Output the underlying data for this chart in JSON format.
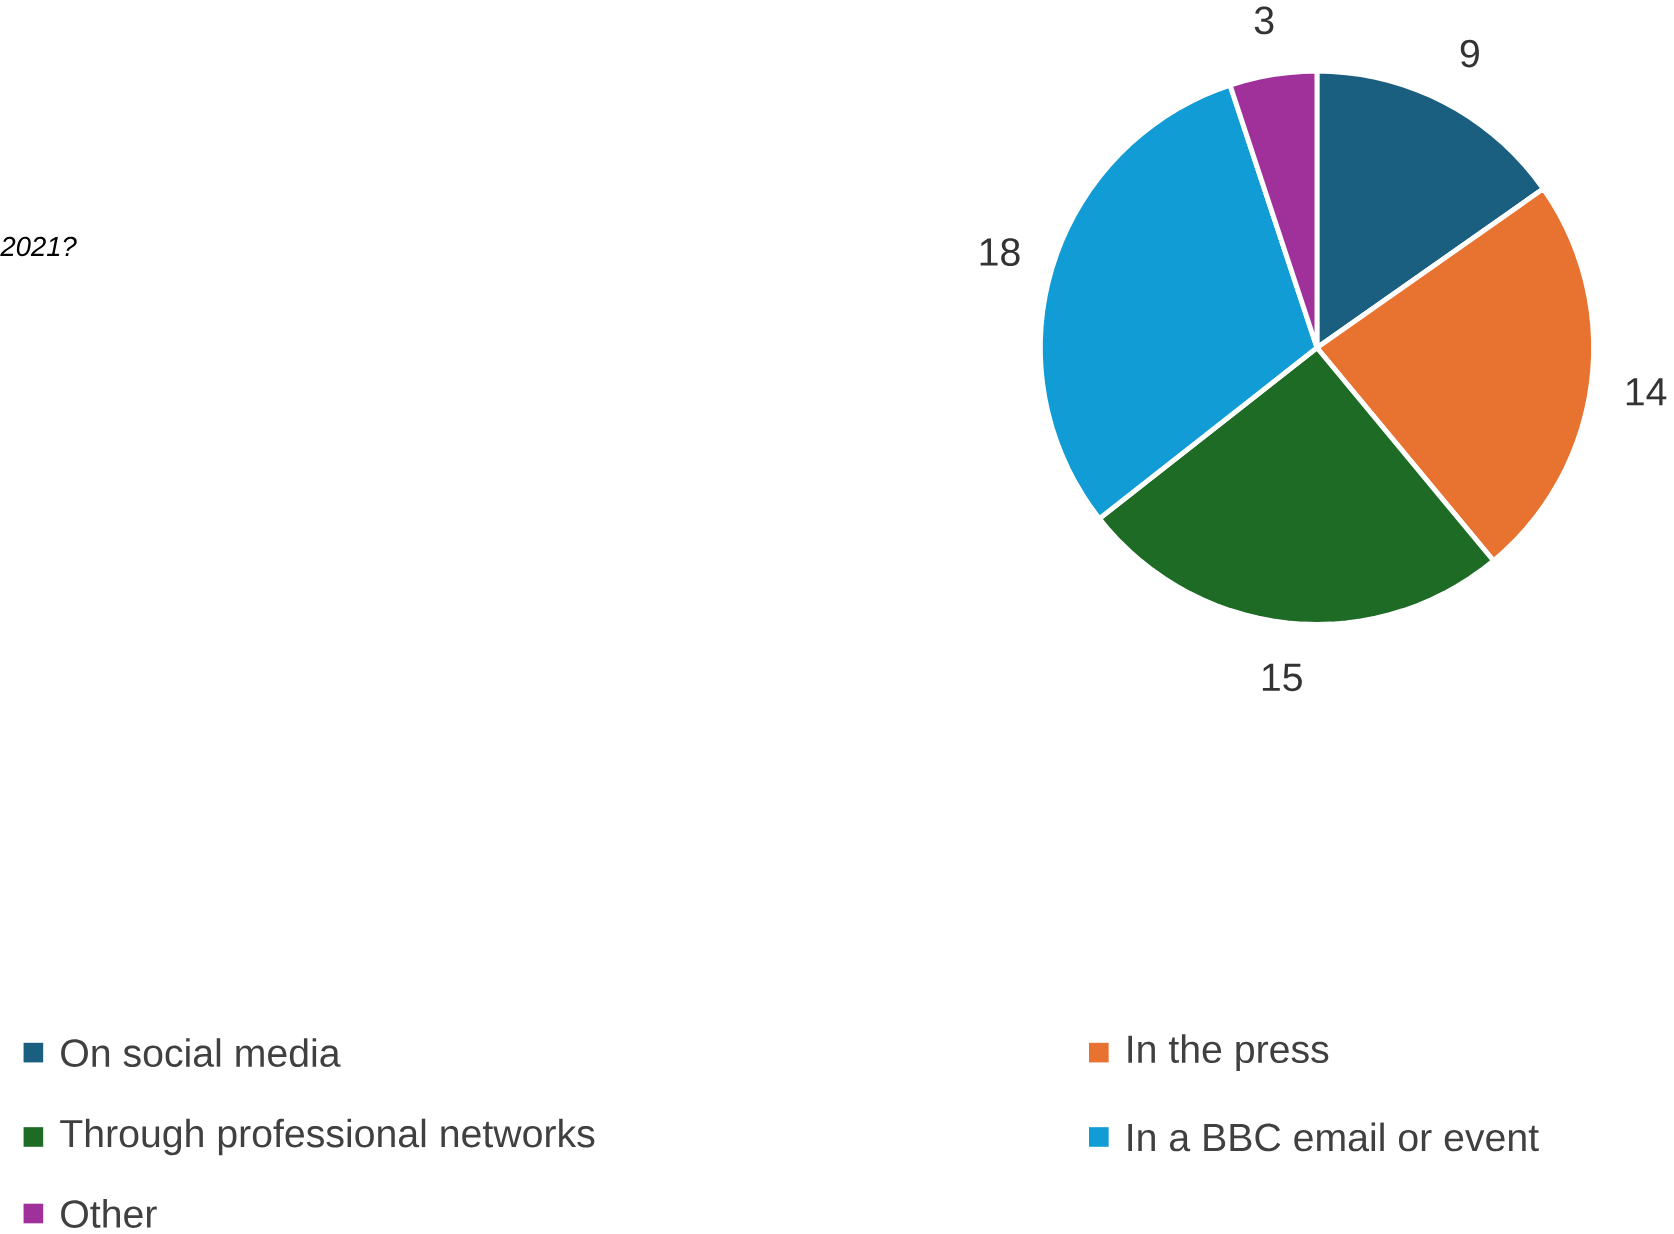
{
  "chart_data": {
    "type": "pie",
    "title": "*2021?*",
    "categories": [
      "On social media",
      "In the press",
      "Through professional networks",
      "In a BBC email or event",
      "Other"
    ],
    "values": [
      9,
      14,
      15,
      18,
      3
    ],
    "colors": [
      "#1a5f80",
      "#e8722f",
      "#1e6b26",
      "#119cd6",
      "#a0309a"
    ],
    "data_labels": true,
    "legend": "bottom"
  }
}
